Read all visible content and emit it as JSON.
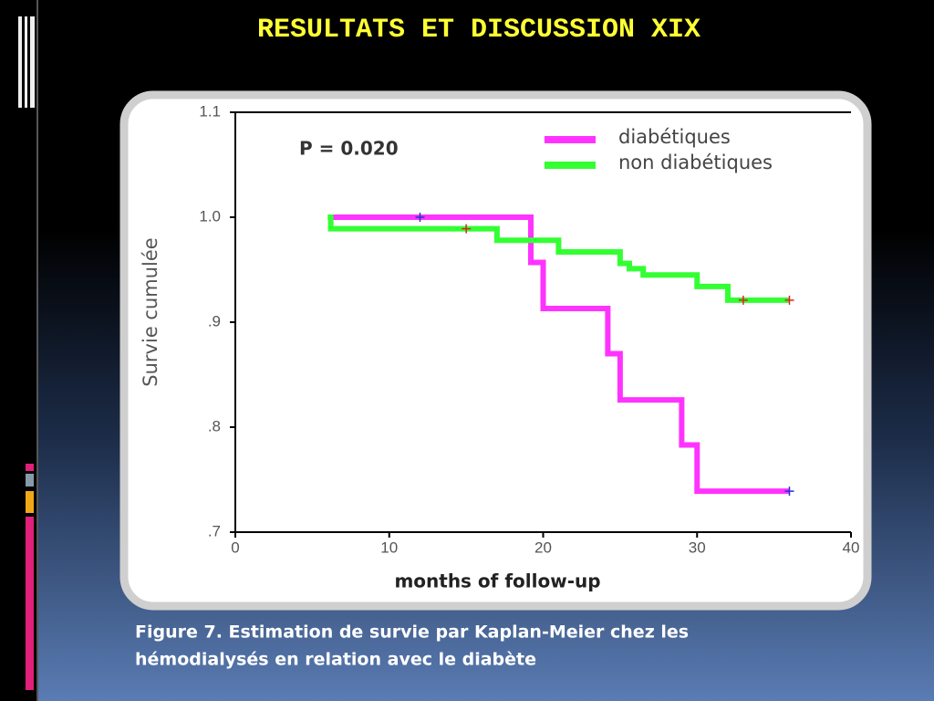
{
  "slide": {
    "title": "RESULTATS ET DISCUSSION XIX",
    "caption": [
      "Figure 7. Estimation de survie par Kaplan-Meier chez les",
      "hémodialysés en relation avec le diabète"
    ]
  },
  "chart_data": {
    "type": "line",
    "step": true,
    "annotation": "P = 0.020",
    "x_label": "months of follow-up",
    "y_label": "Survie cumulée",
    "xlim": [
      0,
      40
    ],
    "xticks": [
      0,
      10,
      20,
      30,
      40
    ],
    "ylim": [
      0.7,
      1.1
    ],
    "yticks": [
      {
        "value": 0.7,
        "label": ".7"
      },
      {
        "value": 0.8,
        "label": ".8"
      },
      {
        "value": 0.9,
        "label": ".9"
      },
      {
        "value": 1.0,
        "label": "1.0"
      },
      1.1
    ],
    "legend": "top-right",
    "series": [
      {
        "name": "diabétiques",
        "color": "#ff33ff",
        "censor_color": "#2233cc",
        "x": [
          6.3,
          19.2,
          20,
          24.2,
          25,
          29,
          30,
          36
        ],
        "values": [
          1.0,
          0.957,
          0.913,
          0.87,
          0.826,
          0.783,
          0.739,
          0.739
        ],
        "censored_x": [
          12,
          36
        ],
        "censored_values": [
          1.0,
          0.739
        ]
      },
      {
        "name": "non diabétiques",
        "color": "#33ff33",
        "censor_color": "#dd2222",
        "x": [
          6,
          6.2,
          17,
          21,
          25,
          25.6,
          26.5,
          30,
          32,
          36
        ],
        "values": [
          1.0,
          0.989,
          0.978,
          0.967,
          0.956,
          0.951,
          0.945,
          0.934,
          0.921,
          0.921
        ],
        "censored_x": [
          15,
          33,
          36
        ],
        "censored_values": [
          0.989,
          0.921,
          0.921
        ]
      }
    ]
  }
}
